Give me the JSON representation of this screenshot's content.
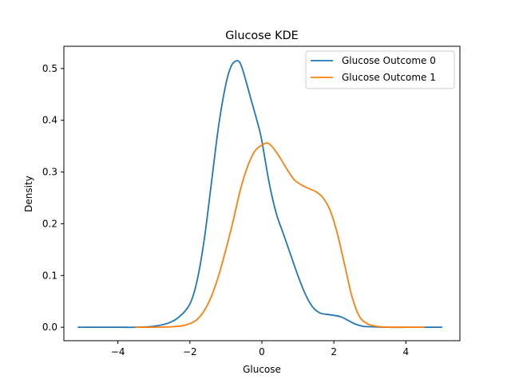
{
  "chart_data": {
    "type": "line",
    "title": "Glucose KDE",
    "xlabel": "Glucose",
    "ylabel": "Density",
    "xlim": [
      -5.5,
      5.5
    ],
    "ylim": [
      -0.026,
      0.543
    ],
    "xticks": [
      -4,
      -2,
      0,
      2,
      4
    ],
    "xtick_labels": [
      "−4",
      "−2",
      "0",
      "2",
      "4"
    ],
    "yticks": [
      0.0,
      0.1,
      0.2,
      0.3,
      0.4,
      0.5
    ],
    "ytick_labels": [
      "0.0",
      "0.1",
      "0.2",
      "0.3",
      "0.4",
      "0.5"
    ],
    "grid": false,
    "legend_position": "top-right",
    "series": [
      {
        "name": "Glucose Outcome 0",
        "color": "#1f77b4",
        "x": [
          -5.1,
          -4.0,
          -3.5,
          -3.0,
          -2.6,
          -2.3,
          -2.0,
          -1.8,
          -1.6,
          -1.4,
          -1.2,
          -1.0,
          -0.85,
          -0.7,
          -0.6,
          -0.5,
          -0.3,
          -0.1,
          0.0,
          0.2,
          0.4,
          0.6,
          0.8,
          1.0,
          1.2,
          1.4,
          1.6,
          1.8,
          2.0,
          2.2,
          2.4,
          2.6,
          2.8,
          3.0,
          3.5,
          4.0,
          5.0
        ],
        "y": [
          0.0,
          0.0,
          0.0,
          0.002,
          0.008,
          0.02,
          0.045,
          0.09,
          0.17,
          0.28,
          0.39,
          0.47,
          0.505,
          0.515,
          0.51,
          0.49,
          0.44,
          0.39,
          0.36,
          0.28,
          0.22,
          0.18,
          0.14,
          0.1,
          0.065,
          0.04,
          0.028,
          0.025,
          0.023,
          0.02,
          0.013,
          0.006,
          0.002,
          0.001,
          0.0,
          0.0,
          0.0
        ]
      },
      {
        "name": "Glucose Outcome 1",
        "color": "#ff7f0e",
        "x": [
          -3.5,
          -3.0,
          -2.5,
          -2.2,
          -2.0,
          -1.8,
          -1.6,
          -1.4,
          -1.2,
          -1.0,
          -0.8,
          -0.6,
          -0.4,
          -0.2,
          0.0,
          0.15,
          0.3,
          0.5,
          0.7,
          0.9,
          1.1,
          1.3,
          1.5,
          1.7,
          1.9,
          2.1,
          2.3,
          2.5,
          2.7,
          2.9,
          3.1,
          3.3,
          3.6,
          4.0,
          4.5
        ],
        "y": [
          0.0,
          0.0,
          0.001,
          0.003,
          0.007,
          0.015,
          0.032,
          0.06,
          0.1,
          0.15,
          0.205,
          0.265,
          0.31,
          0.34,
          0.352,
          0.356,
          0.348,
          0.328,
          0.305,
          0.285,
          0.275,
          0.268,
          0.262,
          0.25,
          0.225,
          0.18,
          0.12,
          0.06,
          0.022,
          0.008,
          0.003,
          0.001,
          0.0,
          0.0,
          0.0
        ]
      }
    ]
  }
}
